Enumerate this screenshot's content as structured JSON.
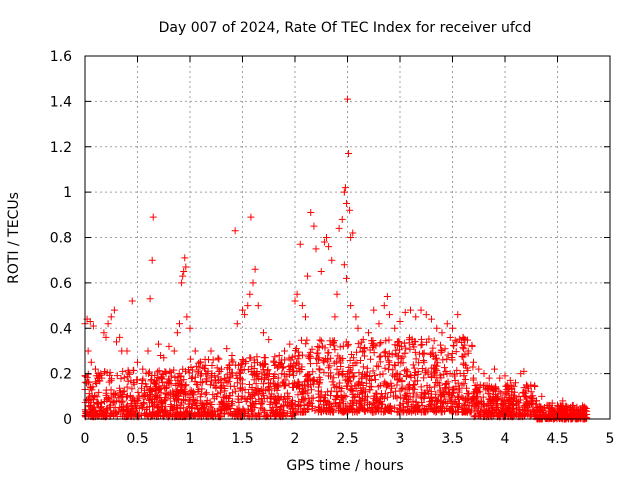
{
  "chart_data": {
    "type": "scatter",
    "title": "Day 007 of 2024, Rate Of TEC Index for receiver ufcd",
    "xlabel": "GPS time / hours",
    "ylabel": "ROTI / TECUs",
    "xlim": [
      0,
      5
    ],
    "ylim": [
      0,
      1.6
    ],
    "grid": true,
    "marker": "+",
    "x_ticks": [
      0,
      0.5,
      1,
      1.5,
      2,
      2.5,
      3,
      3.5,
      4,
      4.5,
      5
    ],
    "x_tick_labels": [
      "0",
      "0.5",
      "1",
      "1.5",
      "2",
      "2.5",
      "3",
      "3.5",
      "4",
      "4.5",
      "5"
    ],
    "y_ticks": [
      0,
      0.2,
      0.4,
      0.6,
      0.8,
      1,
      1.2,
      1.4,
      1.6
    ],
    "y_tick_labels": [
      "0",
      "0.2",
      "0.4",
      "0.6",
      "0.8",
      "1",
      "1.2",
      "1.4",
      "1.6"
    ],
    "series": [
      {
        "name": "ROTI",
        "color": "#ff0000",
        "points": [
          [
            0.0,
            0.42
          ],
          [
            0.02,
            0.44
          ],
          [
            0.05,
            0.43
          ],
          [
            0.08,
            0.41
          ],
          [
            0.03,
            0.3
          ],
          [
            0.06,
            0.25
          ],
          [
            0.1,
            0.22
          ],
          [
            0.12,
            0.18
          ],
          [
            0.15,
            0.2
          ],
          [
            0.18,
            0.38
          ],
          [
            0.2,
            0.36
          ],
          [
            0.22,
            0.42
          ],
          [
            0.25,
            0.45
          ],
          [
            0.28,
            0.48
          ],
          [
            0.3,
            0.34
          ],
          [
            0.33,
            0.36
          ],
          [
            0.35,
            0.3
          ],
          [
            0.4,
            0.3
          ],
          [
            0.45,
            0.52
          ],
          [
            0.5,
            0.25
          ],
          [
            0.55,
            0.22
          ],
          [
            0.6,
            0.3
          ],
          [
            0.62,
            0.53
          ],
          [
            0.64,
            0.7
          ],
          [
            0.65,
            0.89
          ],
          [
            0.7,
            0.33
          ],
          [
            0.72,
            0.28
          ],
          [
            0.75,
            0.27
          ],
          [
            0.8,
            0.32
          ],
          [
            0.85,
            0.3
          ],
          [
            0.88,
            0.38
          ],
          [
            0.9,
            0.42
          ],
          [
            0.92,
            0.6
          ],
          [
            0.93,
            0.63
          ],
          [
            0.94,
            0.65
          ],
          [
            0.95,
            0.71
          ],
          [
            0.96,
            0.67
          ],
          [
            0.97,
            0.45
          ],
          [
            1.0,
            0.4
          ],
          [
            1.05,
            0.3
          ],
          [
            1.1,
            0.25
          ],
          [
            1.15,
            0.2
          ],
          [
            1.2,
            0.3
          ],
          [
            1.3,
            0.22
          ],
          [
            1.35,
            0.31
          ],
          [
            1.4,
            0.28
          ],
          [
            1.43,
            0.83
          ],
          [
            1.45,
            0.42
          ],
          [
            1.5,
            0.48
          ],
          [
            1.52,
            0.46
          ],
          [
            1.55,
            0.5
          ],
          [
            1.57,
            0.55
          ],
          [
            1.58,
            0.89
          ],
          [
            1.6,
            0.6
          ],
          [
            1.62,
            0.66
          ],
          [
            1.65,
            0.5
          ],
          [
            1.7,
            0.38
          ],
          [
            1.75,
            0.35
          ],
          [
            1.8,
            0.25
          ],
          [
            1.85,
            0.28
          ],
          [
            1.9,
            0.3
          ],
          [
            1.95,
            0.33
          ],
          [
            2.0,
            0.52
          ],
          [
            2.02,
            0.55
          ],
          [
            2.05,
            0.77
          ],
          [
            2.07,
            0.5
          ],
          [
            2.1,
            0.45
          ],
          [
            2.12,
            0.63
          ],
          [
            2.15,
            0.91
          ],
          [
            2.18,
            0.85
          ],
          [
            2.2,
            0.75
          ],
          [
            2.25,
            0.65
          ],
          [
            2.28,
            0.78
          ],
          [
            2.3,
            0.8
          ],
          [
            2.32,
            0.76
          ],
          [
            2.35,
            0.7
          ],
          [
            2.38,
            0.45
          ],
          [
            2.4,
            0.55
          ],
          [
            2.42,
            0.84
          ],
          [
            2.45,
            0.88
          ],
          [
            2.47,
            1.0
          ],
          [
            2.48,
            1.02
          ],
          [
            2.49,
            0.95
          ],
          [
            2.5,
            1.41
          ],
          [
            2.51,
            1.17
          ],
          [
            2.52,
            0.92
          ],
          [
            2.53,
            0.8
          ],
          [
            2.55,
            0.82
          ],
          [
            2.47,
            0.68
          ],
          [
            2.49,
            0.62
          ],
          [
            2.53,
            0.5
          ],
          [
            2.58,
            0.45
          ],
          [
            2.6,
            0.4
          ],
          [
            2.65,
            0.35
          ],
          [
            2.7,
            0.38
          ],
          [
            2.75,
            0.48
          ],
          [
            2.8,
            0.42
          ],
          [
            2.85,
            0.5
          ],
          [
            2.88,
            0.54
          ],
          [
            2.9,
            0.46
          ],
          [
            2.95,
            0.4
          ],
          [
            3.0,
            0.43
          ],
          [
            3.05,
            0.47
          ],
          [
            3.1,
            0.48
          ],
          [
            3.15,
            0.45
          ],
          [
            3.2,
            0.48
          ],
          [
            3.25,
            0.46
          ],
          [
            3.3,
            0.44
          ],
          [
            3.35,
            0.4
          ],
          [
            3.4,
            0.38
          ],
          [
            3.45,
            0.42
          ],
          [
            3.5,
            0.4
          ],
          [
            3.55,
            0.46
          ],
          [
            3.6,
            0.36
          ],
          [
            3.65,
            0.3
          ],
          [
            3.7,
            0.25
          ],
          [
            3.75,
            0.22
          ],
          [
            3.8,
            0.2
          ],
          [
            3.85,
            0.18
          ],
          [
            3.9,
            0.22
          ],
          [
            3.95,
            0.18
          ],
          [
            4.0,
            0.19
          ],
          [
            4.05,
            0.17
          ],
          [
            4.1,
            0.16
          ],
          [
            4.15,
            0.2
          ],
          [
            4.18,
            0.21
          ],
          [
            4.2,
            0.1
          ],
          [
            4.25,
            0.12
          ],
          [
            4.3,
            0.08
          ],
          [
            4.35,
            0.1
          ],
          [
            4.4,
            0.06
          ],
          [
            4.45,
            0.07
          ],
          [
            4.5,
            0.06
          ],
          [
            4.55,
            0.08
          ],
          [
            4.6,
            0.05
          ],
          [
            4.65,
            0.06
          ],
          [
            4.7,
            0.04
          ],
          [
            4.75,
            0.05
          ]
        ]
      }
    ],
    "dense_bands": [
      {
        "x_start": 0.0,
        "x_end": 1.0,
        "y_min": 0.01,
        "y_max": 0.22
      },
      {
        "x_start": 1.0,
        "x_end": 2.0,
        "y_min": 0.01,
        "y_max": 0.28
      },
      {
        "x_start": 2.0,
        "x_end": 2.8,
        "y_min": 0.03,
        "y_max": 0.35
      },
      {
        "x_start": 2.8,
        "x_end": 3.7,
        "y_min": 0.03,
        "y_max": 0.36
      },
      {
        "x_start": 3.7,
        "x_end": 4.3,
        "y_min": 0.01,
        "y_max": 0.15
      },
      {
        "x_start": 4.3,
        "x_end": 4.78,
        "y_min": 0.0,
        "y_max": 0.06
      }
    ]
  }
}
